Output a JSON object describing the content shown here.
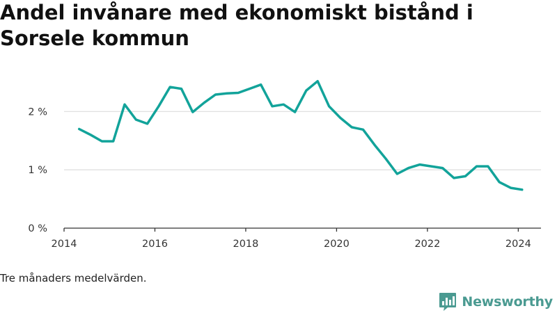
{
  "title": "Andel invånare med ekonomiskt bistånd i Sorsele kommun",
  "footnote": "Tre månaders medelvärden.",
  "brand": {
    "name": "Newsworthy",
    "color": "#4a9a91"
  },
  "colors": {
    "line": "#12a39a",
    "grid": "#dddddd",
    "axis": "#333333",
    "text": "#333333"
  },
  "chart_data": {
    "type": "line",
    "title": "Andel invånare med ekonomiskt bistånd i Sorsele kommun",
    "xlabel": "",
    "ylabel": "",
    "xlim": [
      "2014-01-01",
      "2024-07-01"
    ],
    "ylim": [
      0,
      2.6
    ],
    "x_ticks": [
      "2014",
      "2016",
      "2018",
      "2020",
      "2022",
      "2024"
    ],
    "y_ticks": [
      0,
      1,
      2
    ],
    "y_tick_labels": [
      "0 %",
      "1 %",
      "2 %"
    ],
    "grid": "horizontal",
    "series": [
      {
        "points": [
          [
            "2014-05-01",
            1.7
          ],
          [
            "2014-08-01",
            1.6
          ],
          [
            "2014-11-01",
            1.49
          ],
          [
            "2015-02-01",
            1.49
          ],
          [
            "2015-05-01",
            2.12
          ],
          [
            "2015-08-01",
            1.86
          ],
          [
            "2015-11-01",
            1.79
          ],
          [
            "2016-02-01",
            2.09
          ],
          [
            "2016-05-01",
            2.42
          ],
          [
            "2016-08-01",
            2.39
          ],
          [
            "2016-11-01",
            1.99
          ],
          [
            "2017-02-01",
            2.15
          ],
          [
            "2017-05-01",
            2.29
          ],
          [
            "2017-08-01",
            2.31
          ],
          [
            "2017-11-01",
            2.32
          ],
          [
            "2018-02-01",
            2.39
          ],
          [
            "2018-05-01",
            2.46
          ],
          [
            "2018-08-01",
            2.09
          ],
          [
            "2018-11-01",
            2.12
          ],
          [
            "2019-02-01",
            1.99
          ],
          [
            "2019-05-01",
            2.36
          ],
          [
            "2019-08-01",
            2.52
          ],
          [
            "2019-11-01",
            2.09
          ],
          [
            "2020-02-01",
            1.89
          ],
          [
            "2020-05-01",
            1.73
          ],
          [
            "2020-08-01",
            1.69
          ],
          [
            "2020-11-01",
            1.43
          ],
          [
            "2021-02-01",
            1.19
          ],
          [
            "2021-05-01",
            0.93
          ],
          [
            "2021-08-01",
            1.03
          ],
          [
            "2021-11-01",
            1.09
          ],
          [
            "2022-02-01",
            1.06
          ],
          [
            "2022-05-01",
            1.03
          ],
          [
            "2022-08-01",
            0.86
          ],
          [
            "2022-11-01",
            0.89
          ],
          [
            "2023-02-01",
            1.06
          ],
          [
            "2023-05-01",
            1.06
          ],
          [
            "2023-08-01",
            0.79
          ],
          [
            "2023-11-01",
            0.69
          ],
          [
            "2024-02-01",
            0.66
          ]
        ]
      }
    ]
  }
}
